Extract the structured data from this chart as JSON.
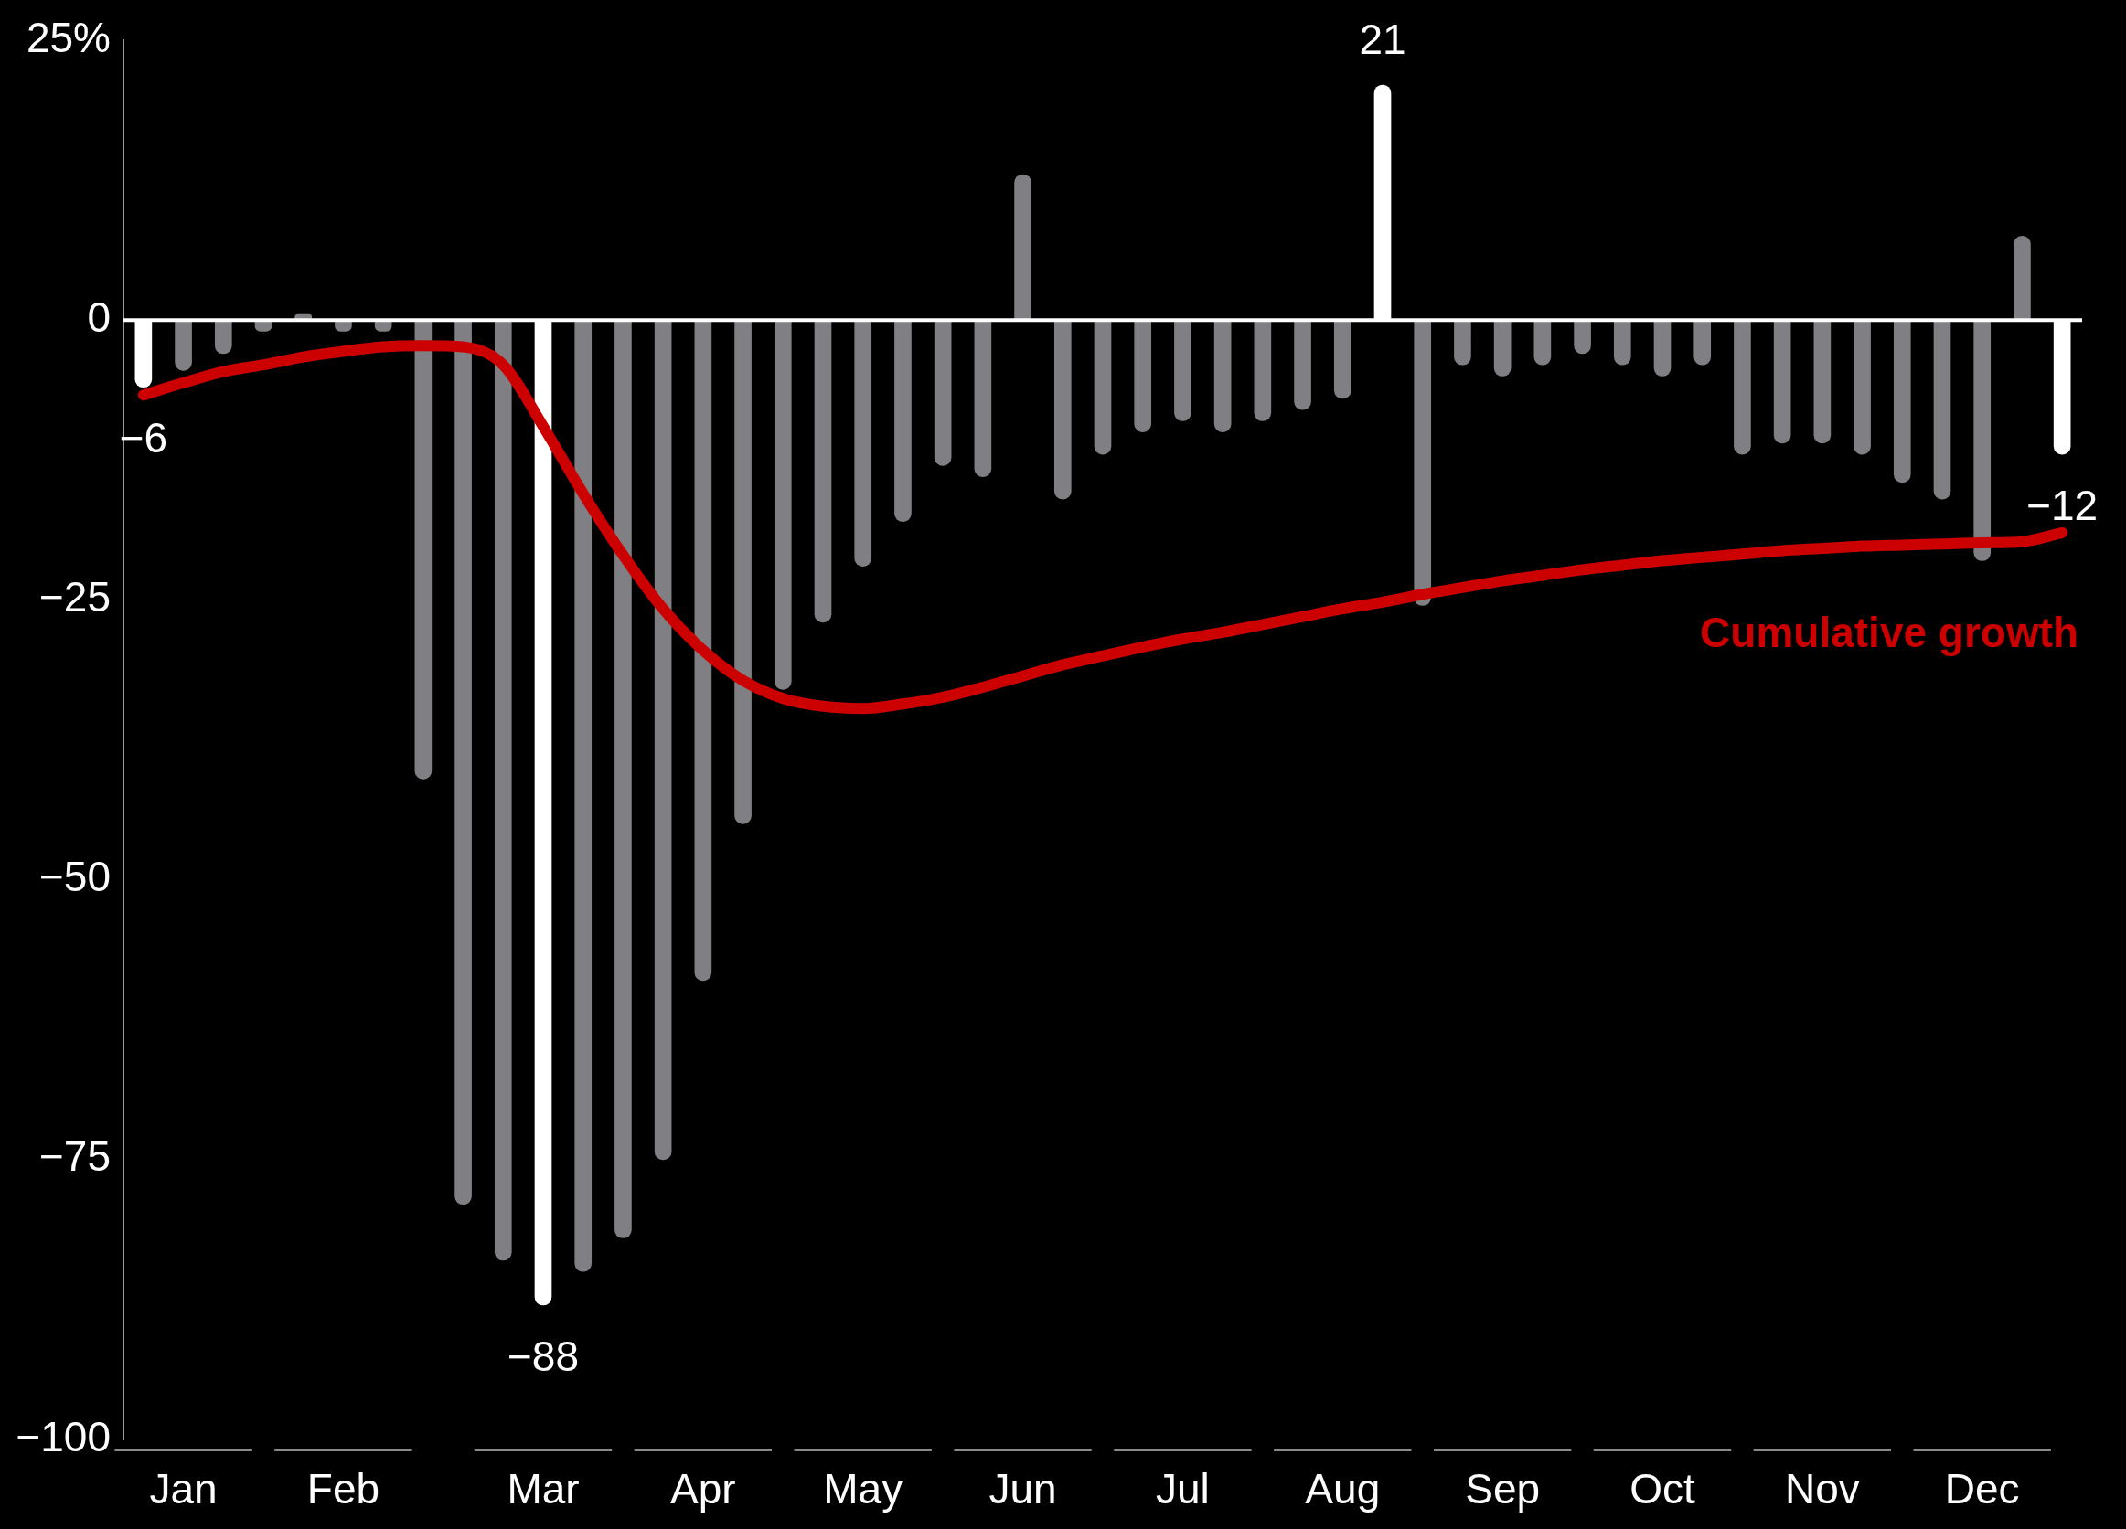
{
  "chart_data": {
    "type": "bar",
    "categories": [
      null,
      "Jan",
      null,
      null,
      null,
      "Feb",
      null,
      null,
      null,
      null,
      "Mar",
      null,
      null,
      null,
      "Apr",
      null,
      null,
      null,
      "May",
      null,
      null,
      null,
      "Jun",
      null,
      null,
      null,
      "Jul",
      null,
      null,
      null,
      "Aug",
      null,
      null,
      null,
      "Sep",
      null,
      null,
      null,
      "Oct",
      null,
      null,
      null,
      "Nov",
      null,
      null,
      null,
      "Dec",
      null,
      null
    ],
    "ylim": [
      -100,
      25
    ],
    "yticks": [
      {
        "value": 25,
        "label": "25%"
      },
      {
        "value": 0,
        "label": "0"
      },
      {
        "value": -25,
        "label": "−25"
      },
      {
        "value": -50,
        "label": "−50"
      },
      {
        "value": -75,
        "label": "−75"
      },
      {
        "value": -100,
        "label": "−100"
      }
    ],
    "ref_lines": [
      {
        "axis": "y",
        "value": 0,
        "color": "#ffffff"
      }
    ],
    "series": [
      {
        "values": [
          -6,
          -4.5,
          -3,
          -1,
          0.5,
          -1,
          -1,
          -41,
          -79,
          -84,
          -88,
          -85,
          -82,
          -75,
          -59,
          -45,
          -33,
          -27,
          -22,
          -18,
          -13,
          -14,
          13,
          -16,
          -12,
          -10,
          -9,
          -10,
          -9,
          -8,
          -7,
          21,
          -25.5,
          -4,
          -5,
          -4,
          -3,
          -4,
          -5,
          -4,
          -12,
          -11,
          -11,
          -12,
          -14.5,
          -16,
          -21.5,
          7.5,
          -12
        ],
        "colors": [
          "#ffffff",
          "#808084",
          "#808084",
          "#808084",
          "#808084",
          "#808084",
          "#808084",
          "#808084",
          "#808084",
          "#808084",
          "#ffffff",
          "#808084",
          "#808084",
          "#808084",
          "#808084",
          "#808084",
          "#808084",
          "#808084",
          "#808084",
          "#808084",
          "#808084",
          "#808084",
          "#808084",
          "#808084",
          "#808084",
          "#808084",
          "#808084",
          "#808084",
          "#808084",
          "#808084",
          "#808084",
          "#ffffff",
          "#808084",
          "#808084",
          "#808084",
          "#808084",
          "#808084",
          "#808084",
          "#808084",
          "#808084",
          "#808084",
          "#808084",
          "#808084",
          "#808084",
          "#808084",
          "#808084",
          "#808084",
          "#808084",
          "#ffffff"
        ],
        "value_labels": [
          "−6",
          null,
          null,
          null,
          null,
          null,
          null,
          null,
          null,
          null,
          "−88",
          null,
          null,
          null,
          null,
          null,
          null,
          null,
          null,
          null,
          null,
          null,
          null,
          null,
          null,
          null,
          null,
          null,
          null,
          null,
          null,
          "21",
          null,
          null,
          null,
          null,
          null,
          null,
          null,
          null,
          null,
          null,
          null,
          null,
          null,
          null,
          null,
          null,
          "−12"
        ]
      },
      {
        "type": "line",
        "name": "Cumulative growth",
        "color": "#cc0000",
        "values": [
          -6.7,
          -5.6,
          -4.6,
          -4,
          -3.3,
          -2.8,
          -2.4,
          -2.3,
          -2.4,
          -4,
          -9.5,
          -15.5,
          -21,
          -25.8,
          -29.5,
          -32.2,
          -33.8,
          -34.5,
          -34.7,
          -34.3,
          -33.7,
          -32.8,
          -31.8,
          -30.8,
          -30,
          -29.2,
          -28.5,
          -27.9,
          -27.2,
          -26.5,
          -25.8,
          -25.2,
          -24.5,
          -23.9,
          -23.3,
          -22.8,
          -22.3,
          -21.9,
          -21.5,
          -21.2,
          -20.9,
          -20.6,
          -20.4,
          -20.2,
          -20.1,
          -20,
          -19.9,
          -19.8,
          -19
        ]
      }
    ]
  }
}
